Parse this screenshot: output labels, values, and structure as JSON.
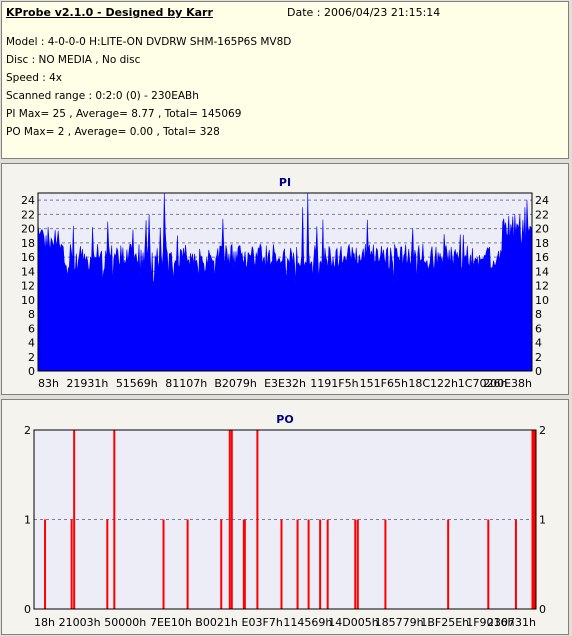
{
  "header": {
    "title": "KProbe v2.1.0 - Designed by Karr",
    "date": "Date : 2006/04/23 21:15:14",
    "model": "Model : 4-0-0-0 H:LITE-ON DVDRW SHM-165P6S MV8D",
    "disc": "Disc : NO MEDIA , No disc",
    "speed": "Speed : 4x",
    "range": "Scanned range : 0:2:0 (0) - 230EABh",
    "pi_summary": "PI Max= 25 , Average= 8.77 , Total= 145069",
    "po_summary": "PO Max= 2 , Average= 0.00 , Total= 328"
  },
  "chart_data": [
    {
      "type": "bar",
      "title": "PI",
      "color": "#0000ff",
      "ylim": [
        0,
        25
      ],
      "yticks": [
        0,
        2,
        4,
        6,
        8,
        10,
        12,
        14,
        16,
        18,
        20,
        22,
        24
      ],
      "xtick_labels": [
        "83h",
        "21931h",
        "51569h",
        "81107h",
        "B2079h",
        "E3E32h",
        "1191F5h",
        "151F65h",
        "18C122h",
        "1C7026h",
        "200E38h"
      ],
      "grid": true,
      "summary": {
        "max": 25,
        "average": 8.77,
        "total": 145069
      },
      "spikes": [
        {
          "position": 0.255,
          "value": 25
        },
        {
          "position": 0.545,
          "value": 25
        },
        {
          "position": 0.535,
          "value": 23
        },
        {
          "position": 0.225,
          "value": 22
        },
        {
          "position": 0.99,
          "value": 24
        },
        {
          "position": 0.985,
          "value": 23
        },
        {
          "position": 0.975,
          "value": 22
        },
        {
          "position": 0.965,
          "value": 22
        }
      ]
    },
    {
      "type": "bar",
      "title": "PO",
      "color": "#ff0000",
      "ylim": [
        0,
        2
      ],
      "yticks": [
        0,
        1,
        2
      ],
      "xtick_labels": [
        "18h",
        "21003h",
        "50000h",
        "7EE10h",
        "B0021h",
        "E03F7h",
        "114569h",
        "14D005h",
        "185779h",
        "1BF25Eh",
        "1F9016h",
        "230731h"
      ],
      "grid": true,
      "summary": {
        "max": 2,
        "average": 0.0,
        "total": 328
      },
      "points": [
        {
          "position": 0.022,
          "value": 1
        },
        {
          "position": 0.075,
          "value": 1
        },
        {
          "position": 0.08,
          "value": 2
        },
        {
          "position": 0.146,
          "value": 1
        },
        {
          "position": 0.16,
          "value": 2
        },
        {
          "position": 0.258,
          "value": 1
        },
        {
          "position": 0.306,
          "value": 1
        },
        {
          "position": 0.373,
          "value": 1
        },
        {
          "position": 0.39,
          "value": 2
        },
        {
          "position": 0.394,
          "value": 2
        },
        {
          "position": 0.418,
          "value": 1
        },
        {
          "position": 0.42,
          "value": 1
        },
        {
          "position": 0.445,
          "value": 2
        },
        {
          "position": 0.493,
          "value": 1
        },
        {
          "position": 0.525,
          "value": 1
        },
        {
          "position": 0.547,
          "value": 1
        },
        {
          "position": 0.57,
          "value": 1
        },
        {
          "position": 0.585,
          "value": 1
        },
        {
          "position": 0.64,
          "value": 1
        },
        {
          "position": 0.645,
          "value": 1
        },
        {
          "position": 0.7,
          "value": 1
        },
        {
          "position": 0.825,
          "value": 1
        },
        {
          "position": 0.905,
          "value": 1
        },
        {
          "position": 0.96,
          "value": 1
        },
        {
          "position": 0.993,
          "value": 2
        },
        {
          "position": 0.996,
          "value": 2
        },
        {
          "position": 0.999,
          "value": 2
        }
      ]
    }
  ]
}
